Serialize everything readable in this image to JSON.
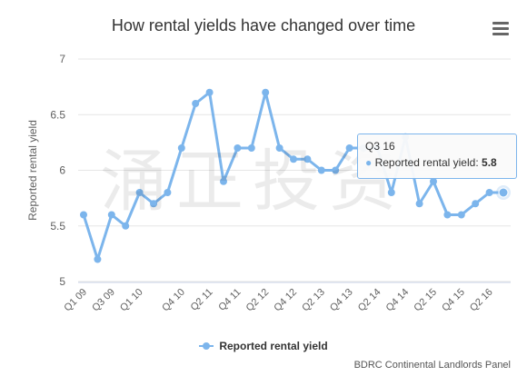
{
  "chart_data": {
    "type": "line",
    "title": "How rental yields have changed over time",
    "ylabel": "Reported rental yield",
    "xlabel": "",
    "ylim": [
      5,
      7
    ],
    "yticks": [
      "5",
      "5.5",
      "6",
      "6.5",
      "7"
    ],
    "grid": true,
    "legend_position": "bottom",
    "categories": [
      "Q1 09",
      "Q2 09",
      "Q3 09",
      "Q4 09",
      "Q1 10",
      "Q2 10",
      "Q3 10",
      "Q4 10",
      "Q1 11",
      "Q2 11",
      "Q3 11",
      "Q4 11",
      "Q1 12",
      "Q2 12",
      "Q3 12",
      "Q4 12",
      "Q1 13",
      "Q2 13",
      "Q3 13",
      "Q4 13",
      "Q1 14",
      "Q2 14",
      "Q3 14",
      "Q4 14",
      "Q1 15",
      "Q2 15",
      "Q3 15",
      "Q4 15",
      "Q1 16",
      "Q2 16",
      "Q3 16"
    ],
    "visible_xtick_labels": [
      "Q1 09",
      "Q3 09",
      "Q1 10",
      "Q4 10",
      "Q2 11",
      "Q4 11",
      "Q2 12",
      "Q4 12",
      "Q2 13",
      "Q4 13",
      "Q2 14",
      "Q4 14",
      "Q2 15",
      "Q4 15",
      "Q2 16"
    ],
    "series": [
      {
        "name": "Reported rental yield",
        "color": "#7cb5ec",
        "values": [
          5.6,
          5.2,
          5.6,
          5.5,
          5.8,
          5.7,
          5.8,
          6.2,
          6.6,
          6.7,
          5.9,
          6.2,
          6.2,
          6.7,
          6.2,
          6.1,
          6.1,
          6.0,
          6.0,
          6.2,
          6.2,
          6.2,
          5.8,
          6.3,
          5.7,
          5.9,
          5.6,
          5.6,
          5.7,
          5.8,
          5.8
        ]
      }
    ]
  },
  "header": {
    "menu_icon": "hamburger-menu-icon"
  },
  "watermark": {
    "text": "涌正投资"
  },
  "tooltip": {
    "header": "Q3 16",
    "series_label": "Reported rental yield:",
    "value": "5.8"
  },
  "legend": {
    "label": "Reported rental yield"
  },
  "credits": {
    "text": "BDRC Continental Landlords Panel"
  }
}
